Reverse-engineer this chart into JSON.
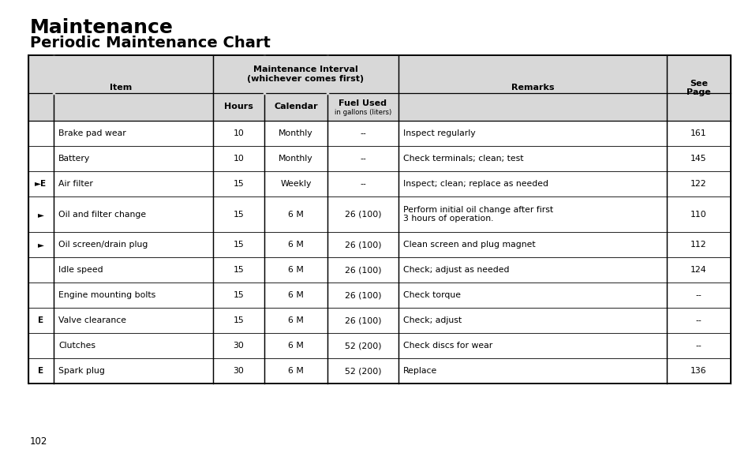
{
  "title1": "Maintenance",
  "title2": "Periodic Maintenance Chart",
  "page_number": "102",
  "rows": [
    {
      "symbol": "",
      "item": "Brake pad wear",
      "hours": "10",
      "calendar": "Monthly",
      "fuel": "--",
      "remarks": "Inspect regularly",
      "page": "161"
    },
    {
      "symbol": "",
      "item": "Battery",
      "hours": "10",
      "calendar": "Monthly",
      "fuel": "--",
      "remarks": "Check terminals; clean; test",
      "page": "145"
    },
    {
      "symbol": "►E",
      "item": "Air filter",
      "hours": "15",
      "calendar": "Weekly",
      "fuel": "--",
      "remarks": "Inspect; clean; replace as needed",
      "page": "122"
    },
    {
      "symbol": "►",
      "item": "Oil and filter change",
      "hours": "15",
      "calendar": "6 M",
      "fuel": "26 (100)",
      "remarks": "Perform initial oil change after first\n3 hours of operation.",
      "page": "110"
    },
    {
      "symbol": "►",
      "item": "Oil screen/drain plug",
      "hours": "15",
      "calendar": "6 M",
      "fuel": "26 (100)",
      "remarks": "Clean screen and plug magnet",
      "page": "112"
    },
    {
      "symbol": "",
      "item": "Idle speed",
      "hours": "15",
      "calendar": "6 M",
      "fuel": "26 (100)",
      "remarks": "Check; adjust as needed",
      "page": "124"
    },
    {
      "symbol": "",
      "item": "Engine mounting bolts",
      "hours": "15",
      "calendar": "6 M",
      "fuel": "26 (100)",
      "remarks": "Check torque",
      "page": "--"
    },
    {
      "symbol": "E",
      "item": "Valve clearance",
      "hours": "15",
      "calendar": "6 M",
      "fuel": "26 (100)",
      "remarks": "Check; adjust",
      "page": "--"
    },
    {
      "symbol": "",
      "item": "Clutches",
      "hours": "30",
      "calendar": "6 M",
      "fuel": "52 (200)",
      "remarks": "Check discs for wear",
      "page": "--"
    },
    {
      "symbol": "E",
      "item": "Spark plug",
      "hours": "30",
      "calendar": "6 M",
      "fuel": "52 (200)",
      "remarks": "Replace",
      "page": "136"
    }
  ],
  "bg_color": "#ffffff",
  "text_color": "#000000",
  "header_bg": "#d8d8d8",
  "border_color": "#000000",
  "title1_fontsize": 18,
  "title2_fontsize": 14,
  "header_fontsize": 8.0,
  "subheader_fontsize": 7.0,
  "cell_fontsize": 7.8,
  "small_fontsize": 6.2
}
